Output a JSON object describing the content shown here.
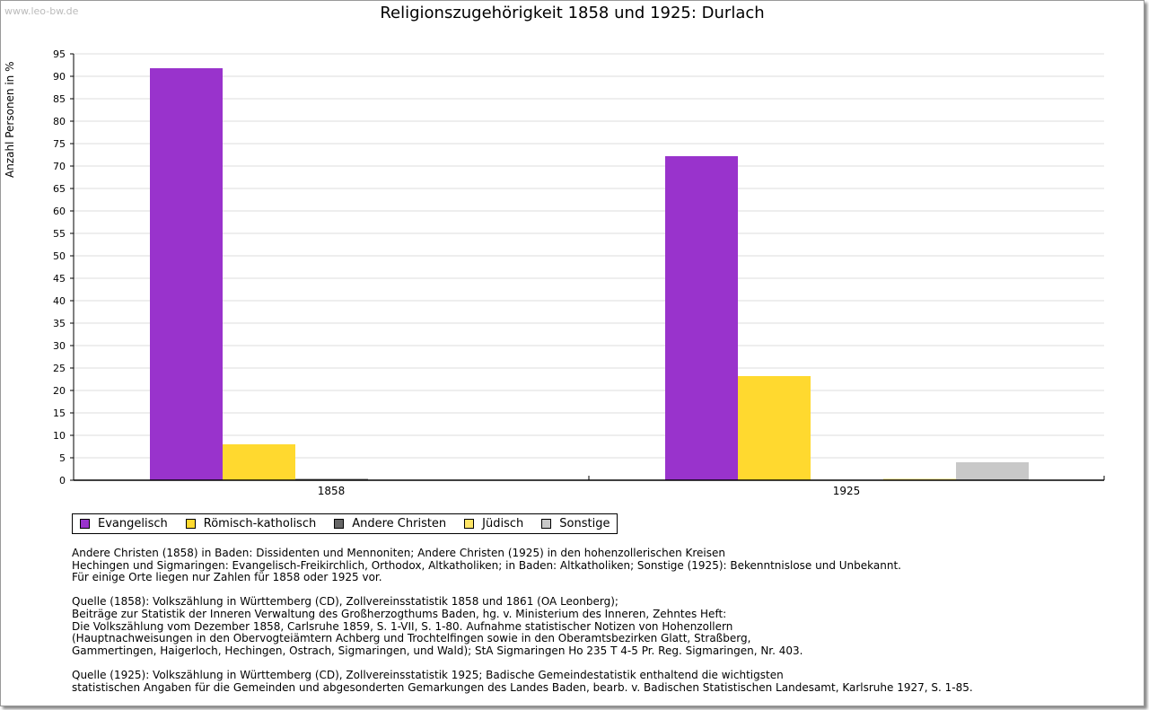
{
  "watermark": "www.leo-bw.de",
  "chart_data": {
    "type": "bar",
    "title": "Religionszugehörigkeit 1858 und 1925: Durlach",
    "ylabel": "Anzahl Personen in %",
    "xlabel": "",
    "ylim": [
      0,
      95
    ],
    "ytick_step": 5,
    "grid": true,
    "legend_position": "bottom-left",
    "categories": [
      "1858",
      "1925"
    ],
    "series": [
      {
        "name": "Evangelisch",
        "color": "#9933cc",
        "values": [
          91.8,
          72.2
        ]
      },
      {
        "name": "Römisch-katholisch",
        "color": "#ffd92f",
        "values": [
          8.0,
          23.2
        ]
      },
      {
        "name": "Andere Christen",
        "color": "#666666",
        "values": [
          0.3,
          0
        ]
      },
      {
        "name": "Jüdisch",
        "color": "#ffe566",
        "values": [
          0,
          0.2
        ]
      },
      {
        "name": "Sonstige",
        "color": "#c8c8c8",
        "values": [
          0,
          4.0
        ]
      }
    ]
  },
  "notes": [
    "Andere Christen (1858) in Baden: Dissidenten und Mennoniten; Andere Christen (1925) in den hohenzollerischen Kreisen\nHechingen und Sigmaringen: Evangelisch-Freikirchlich, Orthodox, Altkatholiken; in Baden: Altkatholiken; Sonstige (1925): Bekenntnislose und Unbekannt.\nFür einige Orte liegen nur Zahlen für 1858 oder 1925 vor.",
    "Quelle (1858): Volkszählung in Württemberg (CD), Zollvereinsstatistik 1858 und 1861 (OA Leonberg);\nBeiträge zur Statistik der Inneren Verwaltung des Großherzogthums Baden, hg. v. Ministerium des Inneren, Zehntes Heft:\nDie Volkszählung vom Dezember 1858, Carlsruhe 1859, S. 1-VII, S. 1-80. Aufnahme statistischer Notizen von Hohenzollern\n(Hauptnachweisungen in den Obervogteiämtern Achberg und Trochtelfingen sowie in den Oberamtsbezirken Glatt, Straßberg,\nGammertingen, Haigerloch, Hechingen, Ostrach, Sigmaringen, und Wald); StA Sigmaringen Ho 235 T 4-5 Pr. Reg. Sigmaringen, Nr. 403.",
    "Quelle (1925): Volkszählung in Württemberg (CD), Zollvereinsstatistik 1925; Badische Gemeindestatistik enthaltend die wichtigsten\nstatistischen Angaben für die Gemeinden und abgesonderten Gemarkungen des Landes Baden, bearb. v. Badischen Statistischen Landesamt, Karlsruhe 1927, S. 1-85."
  ]
}
